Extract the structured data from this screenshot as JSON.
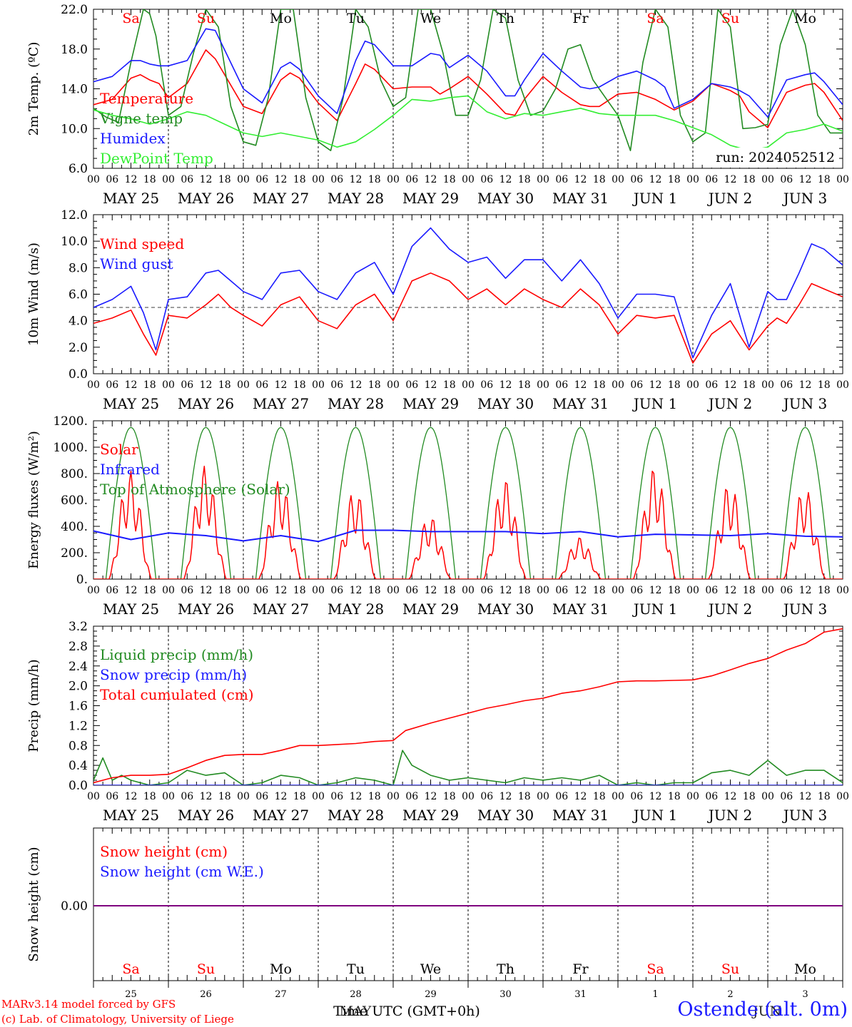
{
  "run_label": "run: 2024052512",
  "axis_title": "Time UTC (GMT+0h)",
  "month_label_may": "MAY",
  "month_label_jun": "JUN",
  "station": "Ostende (alt. 0m)",
  "credits": [
    "MARv3.14 model forced by GFS",
    "(c) Lab. of Climatology, University of Liege"
  ],
  "hour_ticks": [
    "00",
    "06",
    "12",
    "18"
  ],
  "day_labels": [
    "MAY 25",
    "MAY 26",
    "MAY 27",
    "MAY 28",
    "MAY 29",
    "MAY 30",
    "MAY 31",
    "JUN  1",
    "JUN  2",
    "JUN  3"
  ],
  "weekday_labels": [
    "Sa",
    "Su",
    "Mo",
    "Tu",
    "We",
    "Th",
    "Fr",
    "Sa",
    "Su",
    "Mo"
  ],
  "weekday_colors": [
    "#ff0000",
    "#ff0000",
    "#000000",
    "#000000",
    "#000000",
    "#000000",
    "#000000",
    "#ff0000",
    "#ff0000",
    "#000000"
  ],
  "bottom_day_numbers": [
    "25",
    "26",
    "27",
    "28",
    "29",
    "30",
    "31",
    "1",
    "2",
    "3"
  ],
  "colors": {
    "red": "#ff0000",
    "green": "#228b22",
    "blue": "#1a1aff",
    "lightgreen": "#33ee33",
    "purple": "#7f007f"
  },
  "chart_data": [
    {
      "type": "line",
      "ylabel": "2m Temp. (ºC)",
      "ylim": [
        6.0,
        24.0
      ],
      "yticks": [
        "6.0",
        "10.0",
        "14.0",
        "18.0",
        "22.0"
      ],
      "x_unit": "hours since 2024-05-25 00 UTC",
      "xlim": [
        0,
        240
      ],
      "legend": [
        "Temperature",
        "Vigne temp",
        "Humidex",
        "DewPoint Temp"
      ],
      "series": [
        {
          "name": "Temperature",
          "color": "#ff0000",
          "x": [
            0,
            6,
            12,
            15,
            18,
            21,
            24,
            30,
            36,
            39,
            42,
            48,
            54,
            60,
            63,
            66,
            72,
            78,
            84,
            87,
            90,
            96,
            102,
            108,
            111,
            114,
            120,
            126,
            132,
            135,
            138,
            144,
            150,
            156,
            159,
            162,
            168,
            174,
            180,
            183,
            186,
            192,
            198,
            204,
            207,
            210,
            216,
            222,
            228,
            231,
            234,
            240
          ],
          "values": [
            13.2,
            13.8,
            16.2,
            16.6,
            16.0,
            15.6,
            14.0,
            15.6,
            19.4,
            18.4,
            16.6,
            13.0,
            12.2,
            16.0,
            16.8,
            16.2,
            13.4,
            11.4,
            15.6,
            17.8,
            17.2,
            15.0,
            15.2,
            15.2,
            14.4,
            15.0,
            16.4,
            14.4,
            12.2,
            12.0,
            13.8,
            16.4,
            14.6,
            13.2,
            13.0,
            13.0,
            14.4,
            14.6,
            13.8,
            13.2,
            12.6,
            13.6,
            15.6,
            14.8,
            14.2,
            12.4,
            10.6,
            14.6,
            15.4,
            15.6,
            14.6,
            11.4
          ]
        },
        {
          "name": "Vigne temp",
          "color": "#228b22",
          "x": [
            0,
            4,
            8,
            12,
            16,
            18,
            20,
            24,
            28,
            32,
            36,
            40,
            44,
            48,
            52,
            56,
            60,
            64,
            68,
            72,
            76,
            80,
            84,
            88,
            92,
            96,
            100,
            104,
            108,
            112,
            116,
            120,
            124,
            128,
            132,
            136,
            140,
            144,
            148,
            152,
            156,
            160,
            164,
            168,
            172,
            176,
            180,
            184,
            188,
            192,
            196,
            200,
            204,
            208,
            212,
            216,
            220,
            224,
            228,
            232,
            236,
            240
          ],
          "values": [
            12.8,
            11.8,
            11.2,
            18.0,
            24.0,
            23.5,
            21.0,
            12.0,
            13.0,
            19.0,
            24.0,
            22.0,
            13.0,
            9.0,
            8.6,
            14.0,
            24.0,
            24.0,
            14.0,
            9.0,
            8.0,
            14.0,
            24.0,
            22.0,
            16.0,
            13.0,
            14.0,
            24.0,
            24.0,
            19.0,
            12.0,
            12.0,
            16.0,
            24.0,
            23.0,
            16.0,
            12.0,
            12.5,
            15.0,
            19.5,
            20.0,
            16.0,
            14.0,
            12.0,
            8.0,
            18.0,
            24.0,
            22.0,
            12.0,
            9.0,
            10.0,
            24.0,
            22.0,
            10.5,
            10.6,
            11.0,
            20.0,
            24.0,
            20.0,
            12.0,
            10.0,
            10.0
          ]
        },
        {
          "name": "Humidex",
          "color": "#1a1aff",
          "x": [
            0,
            6,
            12,
            15,
            18,
            21,
            24,
            30,
            36,
            39,
            42,
            48,
            54,
            60,
            63,
            66,
            72,
            78,
            84,
            87,
            90,
            96,
            102,
            108,
            111,
            114,
            120,
            126,
            132,
            135,
            138,
            144,
            150,
            156,
            159,
            162,
            168,
            174,
            180,
            183,
            186,
            192,
            198,
            204,
            207,
            210,
            216,
            222,
            228,
            231,
            234,
            240
          ],
          "values": [
            15.8,
            16.4,
            18.2,
            18.2,
            17.8,
            17.6,
            17.6,
            18.2,
            21.8,
            21.6,
            19.4,
            15.0,
            13.4,
            17.4,
            18.0,
            17.2,
            14.2,
            12.2,
            18.2,
            20.4,
            20.0,
            17.6,
            17.6,
            19.0,
            18.8,
            17.4,
            18.8,
            17.0,
            14.2,
            14.2,
            16.0,
            19.0,
            17.0,
            15.2,
            15.0,
            15.2,
            16.4,
            17.0,
            16.0,
            15.2,
            12.8,
            13.8,
            15.6,
            15.2,
            14.8,
            14.2,
            11.8,
            16.0,
            16.6,
            16.8,
            15.8,
            13.2
          ]
        },
        {
          "name": "DewPoint Temp",
          "color": "#33ee33",
          "x": [
            0,
            6,
            12,
            18,
            24,
            30,
            36,
            42,
            48,
            54,
            60,
            66,
            72,
            78,
            84,
            90,
            96,
            102,
            108,
            114,
            120,
            126,
            132,
            138,
            144,
            150,
            156,
            162,
            168,
            174,
            180,
            186,
            192,
            198,
            204,
            210,
            216,
            222,
            228,
            234,
            240
          ],
          "values": [
            12.6,
            12.0,
            11.6,
            11.0,
            11.6,
            12.4,
            12.0,
            11.0,
            10.0,
            9.6,
            10.0,
            9.6,
            9.2,
            8.4,
            9.0,
            10.4,
            12.0,
            13.8,
            13.6,
            14.0,
            14.2,
            12.4,
            11.6,
            12.2,
            12.0,
            12.4,
            12.8,
            12.2,
            12.0,
            12.0,
            12.0,
            11.4,
            10.6,
            9.8,
            8.6,
            8.0,
            8.4,
            10.0,
            10.4,
            11.0,
            10.2
          ]
        }
      ]
    },
    {
      "type": "line",
      "ylabel": "10m Wind (m/s)",
      "ylim": [
        0.0,
        12.0
      ],
      "yticks": [
        "0.0",
        "2.0",
        "4.0",
        "6.0",
        "8.0",
        "10.0",
        "12.0"
      ],
      "reference_line": 5.0,
      "legend": [
        "Wind speed",
        "Wind gust"
      ],
      "series": [
        {
          "name": "Wind speed",
          "color": "#ff0000",
          "x": [
            0,
            6,
            12,
            16,
            20,
            24,
            30,
            36,
            40,
            44,
            48,
            54,
            60,
            66,
            72,
            78,
            84,
            90,
            96,
            102,
            108,
            114,
            120,
            126,
            132,
            138,
            144,
            150,
            156,
            162,
            168,
            174,
            180,
            186,
            192,
            198,
            204,
            210,
            216,
            219,
            222,
            226,
            230,
            234,
            240
          ],
          "values": [
            3.8,
            4.2,
            4.8,
            3.0,
            1.4,
            4.4,
            4.2,
            5.2,
            6.0,
            5.0,
            4.4,
            3.6,
            5.2,
            5.8,
            4.0,
            3.4,
            5.2,
            6.0,
            4.0,
            7.0,
            7.6,
            7.0,
            5.6,
            6.4,
            5.2,
            6.4,
            5.6,
            5.0,
            6.4,
            5.2,
            3.0,
            4.4,
            4.2,
            4.4,
            0.8,
            3.0,
            4.0,
            1.8,
            3.6,
            4.2,
            3.8,
            5.2,
            6.8,
            6.4,
            5.8
          ]
        },
        {
          "name": "Wind gust",
          "color": "#1a1aff",
          "x": [
            0,
            6,
            12,
            16,
            20,
            24,
            30,
            36,
            40,
            44,
            48,
            54,
            60,
            66,
            72,
            78,
            84,
            90,
            96,
            102,
            108,
            114,
            120,
            126,
            132,
            138,
            144,
            150,
            156,
            162,
            168,
            174,
            180,
            186,
            192,
            198,
            204,
            210,
            216,
            219,
            222,
            226,
            230,
            234,
            240
          ],
          "values": [
            5.0,
            5.6,
            6.6,
            4.6,
            1.8,
            5.6,
            5.8,
            7.6,
            7.8,
            7.0,
            6.2,
            5.6,
            7.6,
            7.8,
            6.2,
            5.6,
            7.6,
            8.4,
            6.0,
            9.6,
            11.0,
            9.4,
            8.4,
            8.8,
            7.2,
            8.6,
            8.6,
            7.0,
            8.6,
            6.8,
            4.2,
            6.0,
            6.0,
            5.8,
            1.2,
            4.4,
            6.8,
            2.0,
            6.2,
            5.6,
            5.6,
            7.6,
            9.8,
            9.4,
            8.2
          ]
        }
      ]
    },
    {
      "type": "line",
      "ylabel": "Energy fluxes (W/m²)",
      "ylim": [
        0,
        1200
      ],
      "yticks": [
        "0.",
        "200.",
        "400.",
        "600.",
        "800.",
        "1000.",
        "1200."
      ],
      "legend": [
        "Solar",
        "Infrared",
        "Top of Atmosphere (Solar)"
      ],
      "toa_peak": 1150,
      "solar_peaks": [
        820,
        860,
        760,
        680,
        480,
        760,
        320,
        850,
        730,
        700
      ],
      "series": [
        {
          "name": "Infrared",
          "color": "#1a1aff",
          "x": [
            0,
            12,
            24,
            36,
            48,
            60,
            72,
            84,
            96,
            108,
            120,
            132,
            144,
            156,
            168,
            180,
            192,
            204,
            216,
            228,
            240
          ],
          "values": [
            365,
            300,
            350,
            330,
            290,
            330,
            285,
            370,
            370,
            360,
            360,
            360,
            345,
            360,
            320,
            340,
            335,
            330,
            345,
            325,
            320
          ]
        }
      ]
    },
    {
      "type": "line",
      "ylabel": "Precip (mm/h)",
      "ylim": [
        0.0,
        3.2
      ],
      "yticks": [
        "0.0",
        "0.4",
        "0.8",
        "1.2",
        "1.6",
        "2.0",
        "2.4",
        "2.8",
        "3.2"
      ],
      "legend": [
        "Liquid precip (mm/h)",
        "Snow precip (mm/h)",
        "Total cumulated (cm)"
      ],
      "series": [
        {
          "name": "Liquid precip (mm/h)",
          "color": "#228b22",
          "x": [
            0,
            3,
            6,
            9,
            12,
            18,
            24,
            30,
            36,
            42,
            48,
            54,
            60,
            66,
            72,
            78,
            84,
            90,
            96,
            99,
            102,
            108,
            114,
            120,
            126,
            132,
            138,
            144,
            150,
            156,
            162,
            168,
            174,
            180,
            186,
            192,
            198,
            204,
            210,
            216,
            222,
            228,
            234,
            240
          ],
          "values": [
            0.1,
            0.55,
            0.1,
            0.2,
            0.1,
            0.0,
            0.05,
            0.3,
            0.2,
            0.25,
            0.0,
            0.05,
            0.2,
            0.15,
            0.0,
            0.05,
            0.15,
            0.1,
            0.0,
            0.7,
            0.4,
            0.2,
            0.1,
            0.15,
            0.1,
            0.05,
            0.15,
            0.1,
            0.15,
            0.1,
            0.2,
            0.0,
            0.05,
            0.0,
            0.05,
            0.05,
            0.25,
            0.3,
            0.2,
            0.5,
            0.2,
            0.3,
            0.3,
            0.05
          ]
        },
        {
          "name": "Snow precip (mm/h)",
          "color": "#1a1aff",
          "x": [
            0,
            240
          ],
          "values": [
            0.0,
            0.0
          ]
        },
        {
          "name": "Total cumulated (cm)",
          "color": "#ff0000",
          "x": [
            0,
            6,
            12,
            18,
            24,
            30,
            36,
            42,
            48,
            54,
            60,
            66,
            72,
            78,
            84,
            90,
            96,
            100,
            108,
            114,
            120,
            126,
            132,
            138,
            144,
            150,
            156,
            162,
            168,
            174,
            180,
            186,
            192,
            198,
            204,
            210,
            216,
            222,
            228,
            234,
            240
          ],
          "values": [
            0.05,
            0.15,
            0.2,
            0.2,
            0.22,
            0.35,
            0.5,
            0.6,
            0.62,
            0.62,
            0.7,
            0.8,
            0.8,
            0.82,
            0.84,
            0.88,
            0.9,
            1.1,
            1.25,
            1.35,
            1.45,
            1.55,
            1.62,
            1.7,
            1.75,
            1.85,
            1.9,
            1.98,
            2.08,
            2.1,
            2.1,
            2.11,
            2.12,
            2.2,
            2.32,
            2.45,
            2.55,
            2.72,
            2.85,
            3.08,
            3.15
          ]
        }
      ]
    },
    {
      "type": "line",
      "ylabel": "Snow height (cm)",
      "yticks": [
        "0.00"
      ],
      "legend": [
        "Snow height (cm)",
        "Snow height (cm W.E.)"
      ],
      "series": [
        {
          "name": "Snow height (cm)",
          "color": "#ff0000",
          "x": [
            0,
            240
          ],
          "values": [
            0.0,
            0.0
          ]
        },
        {
          "name": "Snow height (cm W.E.)",
          "color": "#1a1aff",
          "x": [
            0,
            240
          ],
          "values": [
            0.0,
            0.0
          ]
        }
      ]
    }
  ]
}
